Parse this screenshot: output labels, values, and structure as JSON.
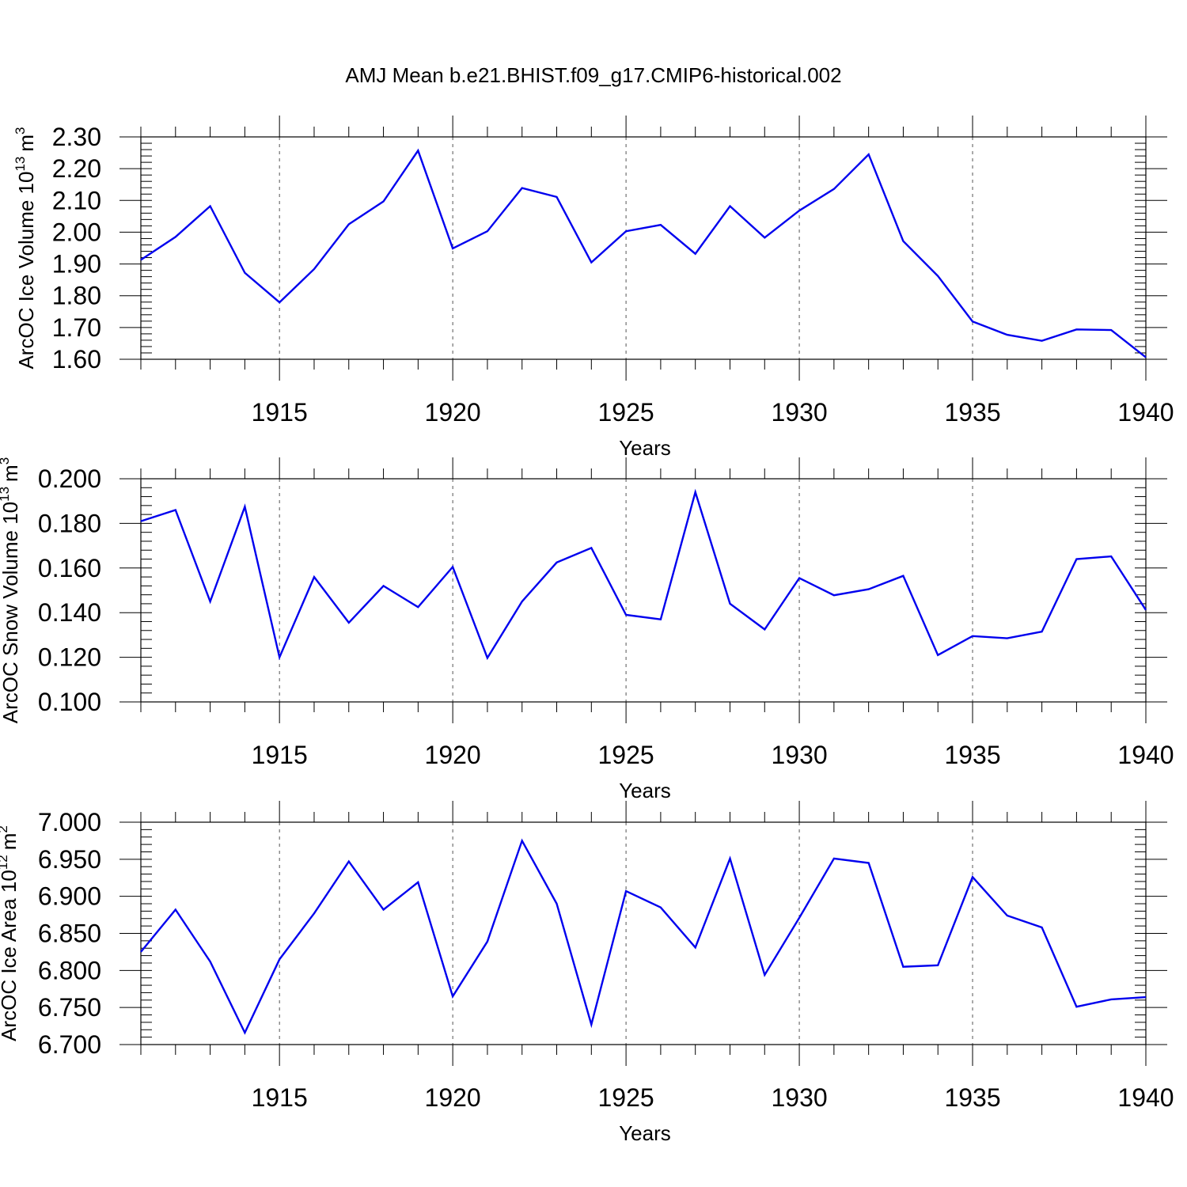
{
  "figure_title": "AMJ Mean b.e21.BHIST.f09_g17.CMIP6-historical.002",
  "colors": {
    "line": "#0000ee",
    "axes": "#000000",
    "grid": "#555555"
  },
  "chart_data": [
    {
      "type": "line",
      "title": "AMJ Mean b.e21.BHIST.f09_g17.CMIP6-historical.002",
      "ylabel": "ArcOC Ice Volume 10",
      "ylabel_sup": "13",
      "ylabel_unit": "m",
      "ylabel_unit_sup": "3",
      "xlabel": "Years",
      "xlim": [
        1911,
        1940
      ],
      "ylim": [
        1.6,
        2.3
      ],
      "xticks": [
        1915,
        1920,
        1925,
        1930,
        1935,
        1940
      ],
      "xtick_labels": [
        "1915",
        "1920",
        "1925",
        "1930",
        "1935",
        "1940"
      ],
      "yticks": [
        1.6,
        1.7,
        1.8,
        1.9,
        2.0,
        2.1,
        2.2,
        2.3
      ],
      "ytick_labels": [
        "1.60",
        "1.70",
        "1.80",
        "1.90",
        "2.00",
        "2.10",
        "2.20",
        "2.30"
      ],
      "grid": "vertical dashed at major x ticks",
      "x": [
        1911,
        1912,
        1913,
        1914,
        1915,
        1916,
        1917,
        1918,
        1919,
        1920,
        1921,
        1922,
        1923,
        1924,
        1925,
        1926,
        1927,
        1928,
        1929,
        1930,
        1931,
        1932,
        1933,
        1934,
        1935,
        1936,
        1937,
        1938,
        1939,
        1940
      ],
      "values": [
        1.913,
        1.985,
        2.082,
        1.872,
        1.779,
        1.884,
        2.025,
        2.097,
        2.257,
        1.949,
        2.003,
        2.139,
        2.111,
        1.905,
        2.003,
        2.023,
        1.932,
        2.082,
        1.983,
        2.068,
        2.136,
        2.245,
        1.972,
        1.862,
        1.719,
        1.677,
        1.658,
        1.694,
        1.692,
        1.606
      ]
    },
    {
      "type": "line",
      "ylabel": "ArcOC Snow Volume 10",
      "ylabel_sup": "13",
      "ylabel_unit": "m",
      "ylabel_unit_sup": "3",
      "xlabel": "Years",
      "xlim": [
        1911,
        1940
      ],
      "ylim": [
        0.1,
        0.2
      ],
      "xticks": [
        1915,
        1920,
        1925,
        1930,
        1935,
        1940
      ],
      "xtick_labels": [
        "1915",
        "1920",
        "1925",
        "1930",
        "1935",
        "1940"
      ],
      "yticks": [
        0.1,
        0.12,
        0.14,
        0.16,
        0.18,
        0.2
      ],
      "ytick_labels": [
        "0.100",
        "0.120",
        "0.140",
        "0.160",
        "0.180",
        "0.200"
      ],
      "grid": "vertical dashed at major x ticks",
      "x": [
        1911,
        1912,
        1913,
        1914,
        1915,
        1916,
        1917,
        1918,
        1919,
        1920,
        1921,
        1922,
        1923,
        1924,
        1925,
        1926,
        1927,
        1928,
        1929,
        1930,
        1931,
        1932,
        1933,
        1934,
        1935,
        1936,
        1937,
        1938,
        1939,
        1940
      ],
      "values": [
        0.181,
        0.186,
        0.145,
        0.1875,
        0.12,
        0.156,
        0.1355,
        0.152,
        0.1425,
        0.1605,
        0.1197,
        0.145,
        0.1625,
        0.169,
        0.139,
        0.137,
        0.194,
        0.144,
        0.1325,
        0.1555,
        0.1478,
        0.1505,
        0.1565,
        0.121,
        0.1295,
        0.1285,
        0.1315,
        0.164,
        0.1652,
        0.1412
      ]
    },
    {
      "type": "line",
      "ylabel": "ArcOC Ice Area 10",
      "ylabel_sup": "12",
      "ylabel_unit": "m",
      "ylabel_unit_sup": "2",
      "xlabel": "Years",
      "xlim": [
        1911,
        1940
      ],
      "ylim": [
        6.7,
        7.0
      ],
      "xticks": [
        1915,
        1920,
        1925,
        1930,
        1935,
        1940
      ],
      "xtick_labels": [
        "1915",
        "1920",
        "1925",
        "1930",
        "1935",
        "1940"
      ],
      "yticks": [
        6.7,
        6.75,
        6.8,
        6.85,
        6.9,
        6.95,
        7.0
      ],
      "ytick_labels": [
        "6.700",
        "6.750",
        "6.800",
        "6.850",
        "6.900",
        "6.950",
        "7.000"
      ],
      "grid": "vertical dashed at major x ticks",
      "x": [
        1911,
        1912,
        1913,
        1914,
        1915,
        1916,
        1917,
        1918,
        1919,
        1920,
        1921,
        1922,
        1923,
        1924,
        1925,
        1926,
        1927,
        1928,
        1929,
        1930,
        1931,
        1932,
        1933,
        1934,
        1935,
        1936,
        1937,
        1938,
        1939,
        1940
      ],
      "values": [
        6.825,
        6.882,
        6.812,
        6.716,
        6.815,
        6.877,
        6.947,
        6.882,
        6.919,
        6.765,
        6.839,
        6.975,
        6.89,
        6.727,
        6.907,
        6.885,
        6.831,
        6.951,
        6.794,
        6.871,
        6.951,
        6.945,
        6.805,
        6.807,
        6.926,
        6.874,
        6.858,
        6.751,
        6.761,
        6.764
      ]
    }
  ]
}
